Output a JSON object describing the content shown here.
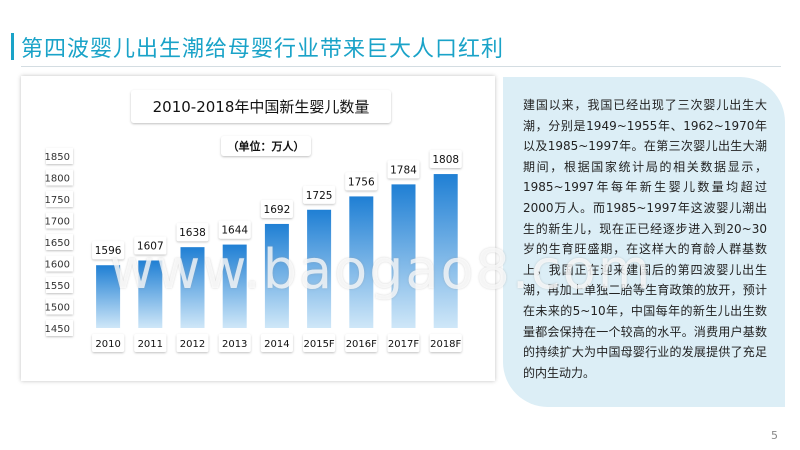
{
  "header": {
    "title": "第四波婴儿出生潮给母婴行业带来巨大人口红利"
  },
  "text_panel": {
    "paragraph": "建国以来，我国已经出现了三次婴儿出生大潮，分别是1949~1955年、1962~1970年以及1985~1997年。在第三次婴儿出生大潮期间，根据国家统计局的相关数据显示，1985~1997年每年新生婴儿数量均超过2000万人。而1985~1997年这波婴儿潮出生的新生儿，现在正已经逐步进入到20~30岁的生育旺盛期，在这样大的育龄人群基数上，我国正在迎来建国后的第四波婴儿出生潮，再加上单独二胎等生育政策的放开，预计在未来的5~10年，中国每年的新生儿出生数量都会保持在一个较高的水平。消费用户基数的持续扩大为中国母婴行业的发展提供了充足的内生动力。"
  },
  "page_number": "5",
  "watermark": "www.baogao8.com",
  "colors": {
    "accent": "#1aa3c8",
    "bar_top": "#1f7fd4",
    "bar_bottom": "#cfe7f8",
    "panel_bg": "#dceef6"
  },
  "chart_data": {
    "type": "bar",
    "title": "2010-2018年中国新生婴儿数量",
    "unit_label": "（单位：万人）",
    "categories": [
      "2010",
      "2011",
      "2012",
      "2013",
      "2014",
      "2015F",
      "2016F",
      "2017F",
      "2018F"
    ],
    "values": [
      1596,
      1607,
      1638,
      1644,
      1692,
      1725,
      1756,
      1784,
      1808
    ],
    "ylim": [
      1450,
      1850
    ],
    "yticks": [
      1450,
      1500,
      1550,
      1600,
      1650,
      1700,
      1750,
      1800,
      1850
    ],
    "grid": false,
    "legend": "none"
  }
}
